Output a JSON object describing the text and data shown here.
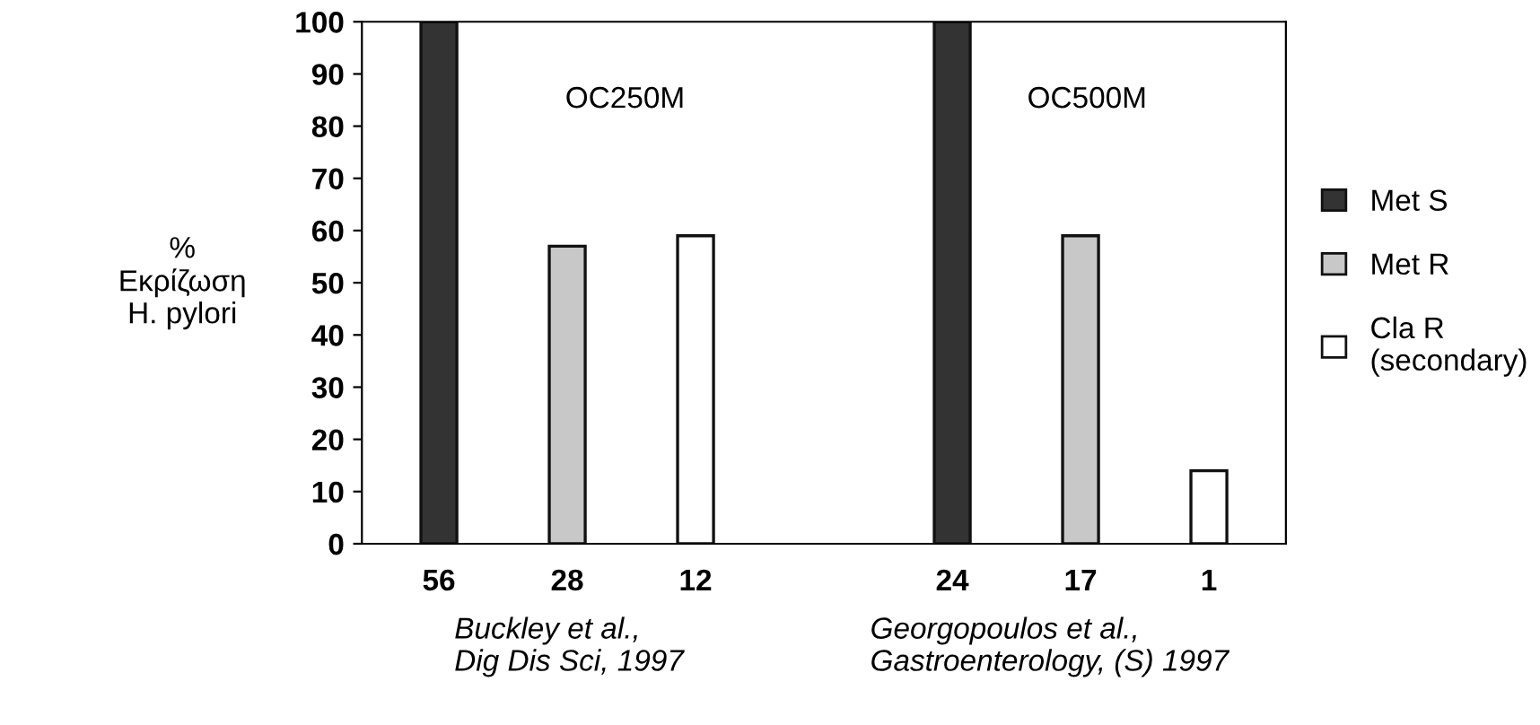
{
  "chart_data": {
    "type": "bar",
    "ylabel": "%\nΕκρίζωση\nH. pylori",
    "categories": [
      "56",
      "28",
      "12",
      null,
      "24",
      "17",
      "1"
    ],
    "series": [
      {
        "name": "Met S",
        "color": "#333333",
        "values": [
          100,
          null,
          null,
          null,
          100,
          null,
          null
        ]
      },
      {
        "name": "Met R",
        "color": "#c8c8c8",
        "values": [
          null,
          57,
          null,
          null,
          null,
          59,
          null
        ]
      },
      {
        "name": "Cla R\n(secondary)",
        "color": "#ffffff",
        "values": [
          null,
          null,
          59,
          null,
          null,
          null,
          14
        ]
      }
    ],
    "ylim": [
      0,
      100
    ],
    "yticks": [
      0,
      10,
      20,
      30,
      40,
      50,
      60,
      70,
      80,
      90,
      100
    ],
    "grid": false,
    "legend": "right",
    "annotations": [
      "OC250M",
      "OC500M",
      "Buckley et al.,\nDig Dis Sci, 1997",
      "Georgopoulos et al.,\nGastroenterology, (S) 1997"
    ]
  }
}
